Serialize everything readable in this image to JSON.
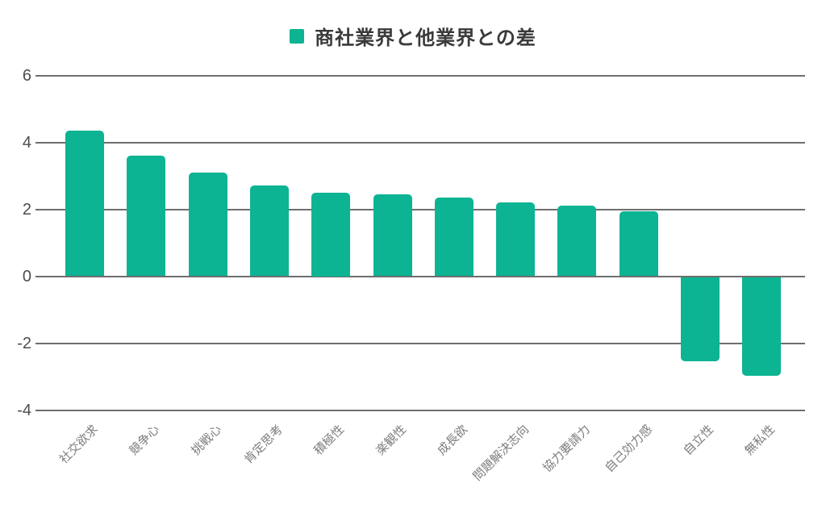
{
  "chart_data": {
    "type": "bar",
    "title": "商社業界と他業界との差",
    "legend": [
      "商社業界と他業界との差"
    ],
    "legend_position": "top-center",
    "grid": true,
    "categories": [
      "社交欲求",
      "競争心",
      "挑戦心",
      "肯定思考",
      "積極性",
      "楽観性",
      "成長欲",
      "問題解決志向",
      "協力要請力",
      "自己効力感",
      "自立性",
      "無私性"
    ],
    "series": [
      {
        "name": "商社業界と他業界との差",
        "values": [
          4.35,
          3.6,
          3.1,
          2.7,
          2.5,
          2.45,
          2.35,
          2.2,
          2.1,
          1.95,
          -2.5,
          -2.95
        ]
      }
    ],
    "values": [
      4.35,
      3.6,
      3.1,
      2.7,
      2.5,
      2.45,
      2.35,
      2.2,
      2.1,
      1.95,
      -2.5,
      -2.95
    ],
    "xlabel": "",
    "ylabel": "",
    "ylim": [
      -4,
      6
    ],
    "yticks": [
      6,
      4,
      2,
      0,
      -2,
      -4
    ]
  },
  "style": {
    "bar_color": "#0cb493",
    "grid_color": "#6e6e6e",
    "ytick_color": "#4d4d4d",
    "xtick_color": "#7d7d7d",
    "title_color": "#3a3a3a",
    "background": "#ffffff"
  }
}
